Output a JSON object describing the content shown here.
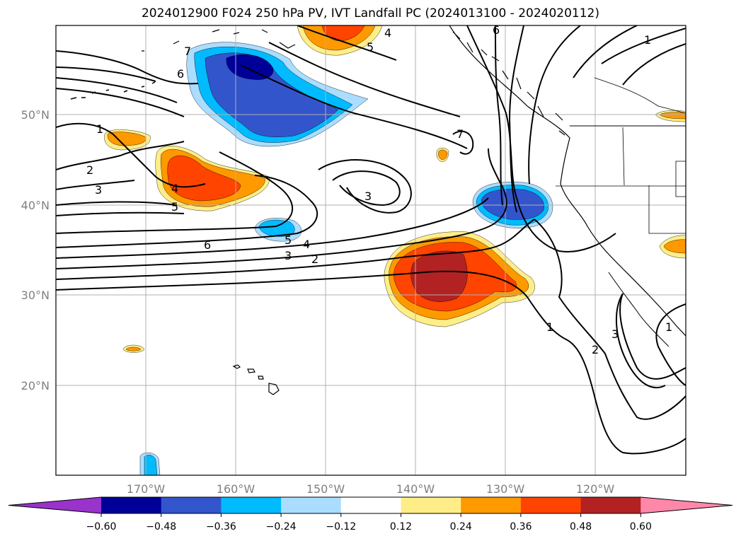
{
  "title": "2024012900 F024 250 hPa PV, IVT Landfall PC (2024013100 - 2024020112)",
  "map": {
    "longitude_ticks": [
      "170°W",
      "160°W",
      "150°W",
      "140°W",
      "130°W",
      "120°W"
    ],
    "latitude_ticks": [
      "50°N",
      "40°N",
      "30°N",
      "20°N"
    ],
    "fill_colors": {
      "n060": "#9933cc",
      "n048": "#000099",
      "n036": "#3355cc",
      "n024": "#00bbff",
      "n012": "#aaddff",
      "p012": "#ffee88",
      "p024": "#ff9900",
      "p036": "#ff4400",
      "p048": "#b22222",
      "p060": "#ff88aa"
    }
  },
  "contour_labels": {
    "l1": "1",
    "l2": "2",
    "l3": "3",
    "l4": "4",
    "l5": "5",
    "l6": "6",
    "l7": "7"
  },
  "colorbar": {
    "ticks": [
      "−0.60",
      "−0.48",
      "−0.36",
      "−0.24",
      "−0.12",
      "0.12",
      "0.24",
      "0.36",
      "0.48",
      "0.60"
    ],
    "colors": [
      "#9933cc",
      "#000099",
      "#3355cc",
      "#00bbff",
      "#aaddff",
      "#ffffff",
      "#ffee88",
      "#ff9900",
      "#ff4400",
      "#b22222",
      "#ff88aa"
    ]
  }
}
